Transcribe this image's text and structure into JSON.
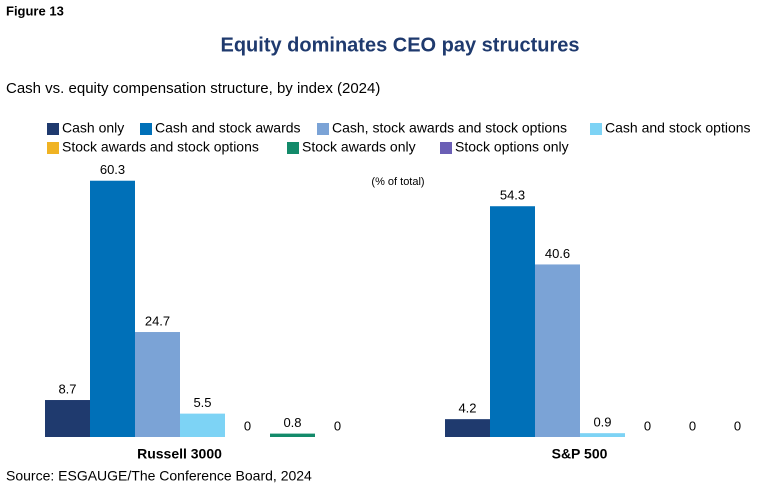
{
  "figure_label": "Figure 13",
  "chart_data": {
    "type": "bar",
    "title": "Equity dominates CEO pay structures",
    "subtitle": "Cash vs. equity compensation structure, by index (2024)",
    "unit_label": "(% of total)",
    "categories": [
      "Russell 3000",
      "S&P 500"
    ],
    "series": [
      {
        "name": "Cash only",
        "color": "#1f3a6e",
        "values": [
          8.7,
          4.2
        ]
      },
      {
        "name": "Cash and stock awards",
        "color": "#0070b8",
        "values": [
          60.3,
          54.3
        ]
      },
      {
        "name": "Cash, stock awards and stock options",
        "color": "#7ba3d6",
        "values": [
          24.7,
          40.6
        ]
      },
      {
        "name": "Cash and stock options",
        "color": "#7dd3f5",
        "values": [
          5.5,
          0.9
        ]
      },
      {
        "name": "Stock awards and stock options",
        "color": "#f0b323",
        "values": [
          0,
          0
        ]
      },
      {
        "name": "Stock awards only",
        "color": "#138a6a",
        "values": [
          0.8,
          0
        ]
      },
      {
        "name": "Stock options only",
        "color": "#6b5fb5",
        "values": [
          0,
          0
        ]
      }
    ],
    "source": "Source: ESGAUGE/The Conference Board, 2024"
  }
}
